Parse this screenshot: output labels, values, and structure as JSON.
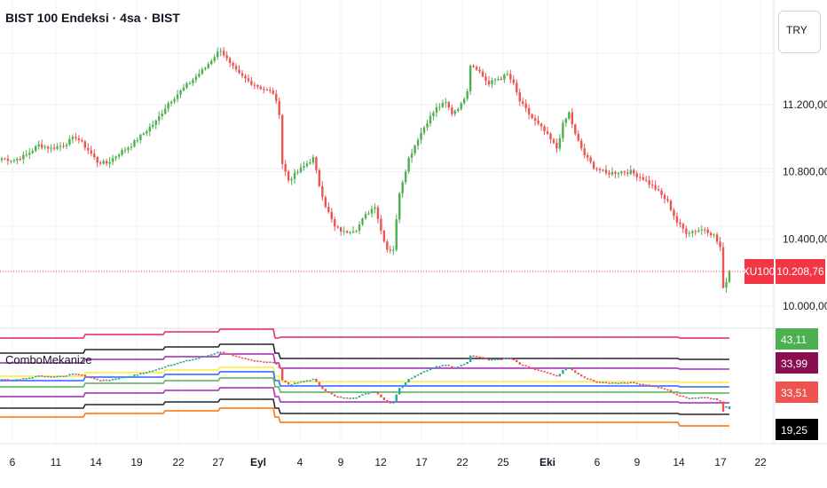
{
  "header": {
    "title": "BIST 100 Endeksi · 4sa · BIST",
    "currency": "TRY"
  },
  "indicator": {
    "name": "ComboMekanize"
  },
  "chart_data": {
    "type": "candlestick",
    "price_axis": {
      "ticks": [
        "11.200,00",
        "10.800,00",
        "10.400,00",
        "10.000,00"
      ],
      "tick_values": [
        11200,
        10800,
        10400,
        10000
      ]
    },
    "last_price": {
      "symbol": "XU100",
      "value": 10208.76,
      "label": "10.208,76"
    },
    "x_ticks": [
      {
        "label": "6",
        "bold": false
      },
      {
        "label": "11",
        "bold": false
      },
      {
        "label": "14",
        "bold": false
      },
      {
        "label": "19",
        "bold": false
      },
      {
        "label": "22",
        "bold": false
      },
      {
        "label": "27",
        "bold": false
      },
      {
        "label": "Eyl",
        "bold": true
      },
      {
        "label": "4",
        "bold": false
      },
      {
        "label": "9",
        "bold": false
      },
      {
        "label": "12",
        "bold": false
      },
      {
        "label": "17",
        "bold": false
      },
      {
        "label": "22",
        "bold": false
      },
      {
        "label": "25",
        "bold": false
      },
      {
        "label": "Eki",
        "bold": true
      },
      {
        "label": "6",
        "bold": false
      },
      {
        "label": "9",
        "bold": false
      },
      {
        "label": "14",
        "bold": false
      },
      {
        "label": "17",
        "bold": false
      },
      {
        "label": "22",
        "bold": false
      }
    ],
    "price_path": [
      [
        0,
        10880
      ],
      [
        4,
        10870
      ],
      [
        8,
        10900
      ],
      [
        12,
        10960
      ],
      [
        16,
        10940
      ],
      [
        20,
        10960
      ],
      [
        24,
        11010
      ],
      [
        28,
        10930
      ],
      [
        31,
        10860
      ],
      [
        34,
        10850
      ],
      [
        38,
        10910
      ],
      [
        42,
        10960
      ],
      [
        46,
        11030
      ],
      [
        50,
        11100
      ],
      [
        54,
        11210
      ],
      [
        58,
        11280
      ],
      [
        62,
        11350
      ],
      [
        66,
        11420
      ],
      [
        69,
        11490
      ],
      [
        71,
        11530
      ],
      [
        74,
        11440
      ],
      [
        77,
        11380
      ],
      [
        80,
        11340
      ],
      [
        84,
        11300
      ],
      [
        88,
        11270
      ],
      [
        90,
        11150
      ],
      [
        91,
        10850
      ],
      [
        93,
        10750
      ],
      [
        96,
        10800
      ],
      [
        99,
        10850
      ],
      [
        101,
        10880
      ],
      [
        103,
        10720
      ],
      [
        105,
        10600
      ],
      [
        108,
        10470
      ],
      [
        111,
        10440
      ],
      [
        115,
        10460
      ],
      [
        118,
        10540
      ],
      [
        121,
        10600
      ],
      [
        123,
        10450
      ],
      [
        125,
        10340
      ],
      [
        127,
        10340
      ],
      [
        129,
        10680
      ],
      [
        132,
        10880
      ],
      [
        135,
        11000
      ],
      [
        138,
        11100
      ],
      [
        141,
        11180
      ],
      [
        144,
        11210
      ],
      [
        146,
        11150
      ],
      [
        149,
        11200
      ],
      [
        151,
        11290
      ],
      [
        152,
        11440
      ],
      [
        154,
        11420
      ],
      [
        156,
        11370
      ],
      [
        158,
        11320
      ],
      [
        160,
        11350
      ],
      [
        162,
        11360
      ],
      [
        164,
        11380
      ],
      [
        166,
        11320
      ],
      [
        168,
        11220
      ],
      [
        172,
        11120
      ],
      [
        176,
        11040
      ],
      [
        180,
        10940
      ],
      [
        182,
        11080
      ],
      [
        184,
        11150
      ],
      [
        186,
        11020
      ],
      [
        189,
        10900
      ],
      [
        192,
        10830
      ],
      [
        196,
        10790
      ],
      [
        200,
        10800
      ],
      [
        204,
        10800
      ],
      [
        208,
        10760
      ],
      [
        212,
        10700
      ],
      [
        216,
        10620
      ],
      [
        219,
        10500
      ],
      [
        222,
        10440
      ],
      [
        225,
        10450
      ],
      [
        228,
        10460
      ],
      [
        231,
        10420
      ],
      [
        233,
        10350
      ],
      [
        234,
        10100
      ],
      [
        236,
        10208.76
      ]
    ],
    "indicator": {
      "name": "ComboMekanize",
      "value_labels": [
        {
          "value": "43,11",
          "color": "#4caf50"
        },
        {
          "value": "33,99",
          "color": "#880e4f"
        },
        {
          "value": "33,51",
          "color": "#ef5350"
        },
        {
          "value": "19,25",
          "color": "#000000"
        }
      ],
      "bands": [
        {
          "color": "#e91e63"
        },
        {
          "color": "#000000"
        },
        {
          "color": "#9c27b0"
        },
        {
          "color": "#ffeb3b"
        },
        {
          "color": "#2962ff"
        },
        {
          "color": "#4caf50"
        },
        {
          "color": "#9c27b0"
        },
        {
          "color": "#000000"
        },
        {
          "color": "#ff6d00"
        }
      ]
    },
    "colors": {
      "up": "#26a69a",
      "up_body": "#4caf50",
      "down": "#ef5350",
      "price_line": "#f23645",
      "grid": "#f0f3fa"
    }
  }
}
